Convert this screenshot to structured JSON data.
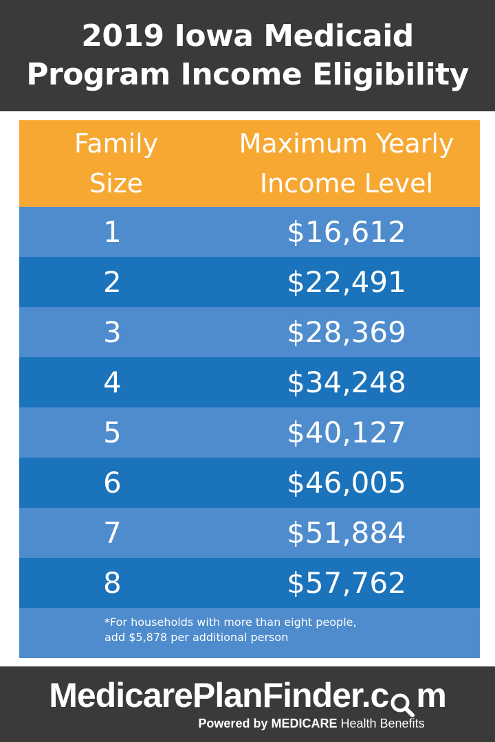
{
  "title": {
    "line1": "2019 Iowa Medicaid",
    "line2": "Program Income Eligibility"
  },
  "table": {
    "header": {
      "col1_line1": "Family",
      "col1_line2": "Size",
      "col2_line1": "Maximum Yearly",
      "col2_line2": "Income Level"
    },
    "rows": [
      {
        "size": "1",
        "income": "$16,612"
      },
      {
        "size": "2",
        "income": "$22,491"
      },
      {
        "size": "3",
        "income": "$28,369"
      },
      {
        "size": "4",
        "income": "$34,248"
      },
      {
        "size": "5",
        "income": "$40,127"
      },
      {
        "size": "6",
        "income": "$46,005"
      },
      {
        "size": "7",
        "income": "$51,884"
      },
      {
        "size": "8",
        "income": "$57,762"
      }
    ],
    "footnote_line1": "*For households with more than eight people,",
    "footnote_line2": "add $5,878 per additional person"
  },
  "footer": {
    "brand_part1": "MedicarePlanFinder.c",
    "brand_part2": "m",
    "brand_icon": "magnifier-icon",
    "tagline_powered": "Powered by",
    "tagline_medicare": "MEDICARE",
    "tagline_rest": "Health Benefits"
  },
  "colors": {
    "header_bg": "#3a3a3a",
    "table_header": "#f7a833",
    "row_light": "#4f8ccd",
    "row_dark": "#1b73bb"
  }
}
